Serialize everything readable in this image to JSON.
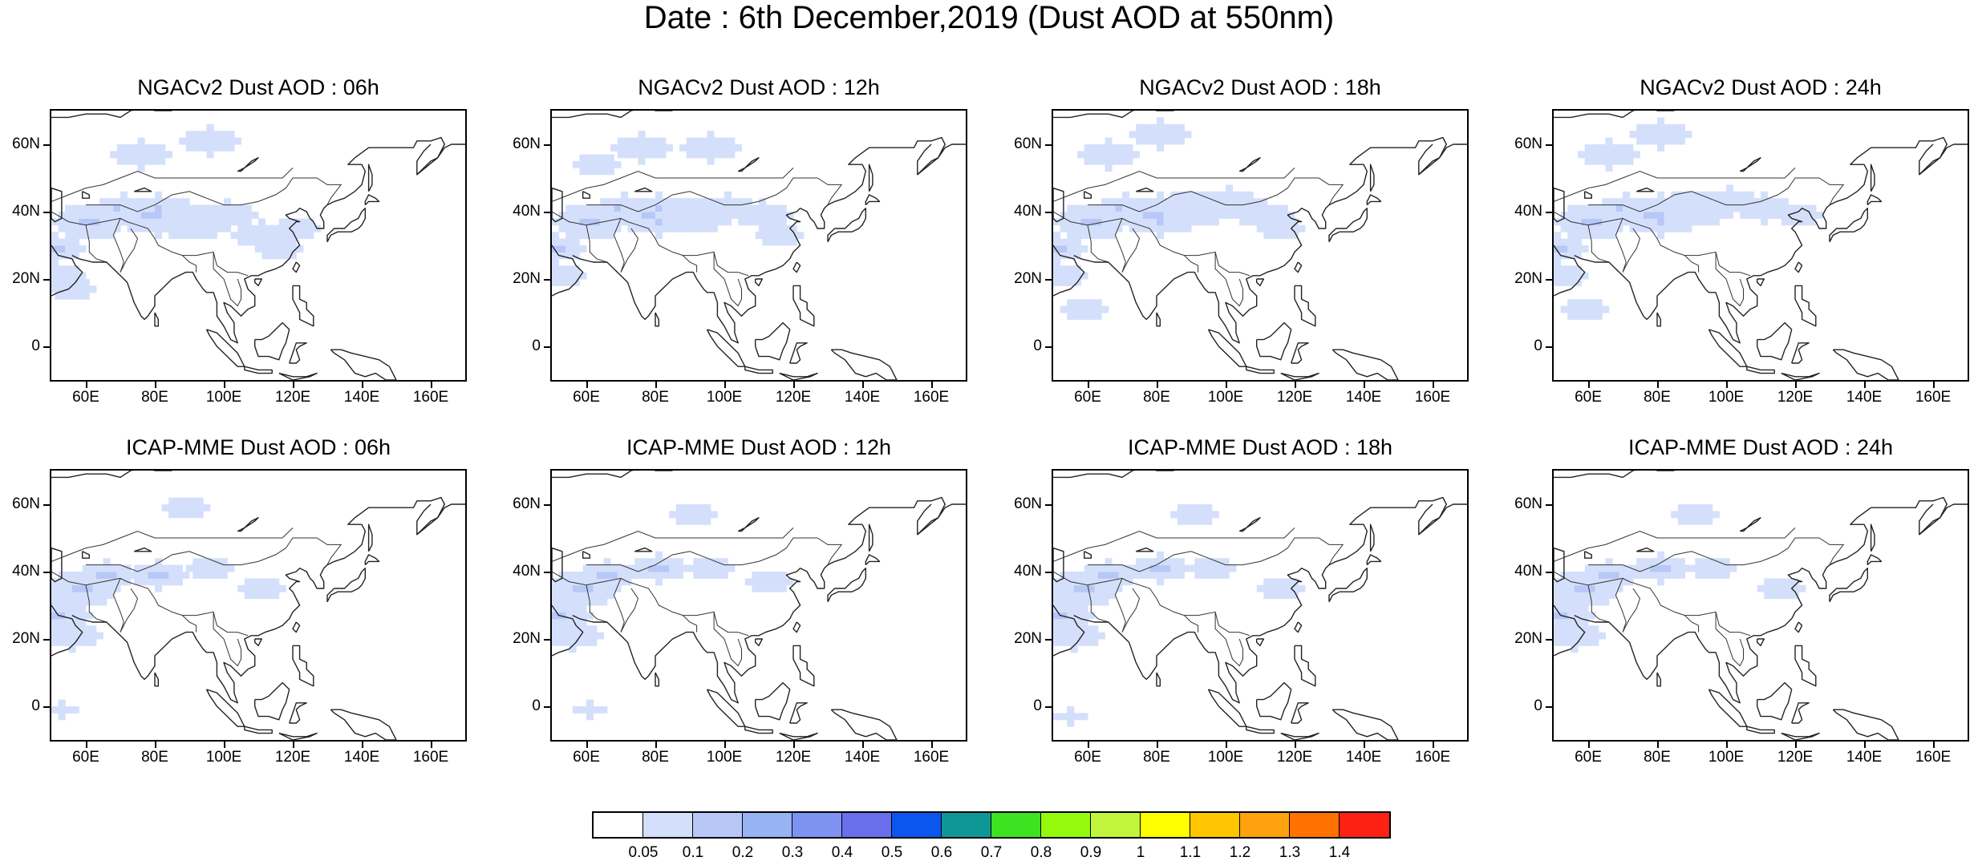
{
  "title": "Date : 6th December,2019 (Dust AOD at 550nm)",
  "panels": [
    {
      "title": "NGACv2 Dust AOD : 06h",
      "model": "NGACv2",
      "lead": "06h",
      "dust": [
        [
          50,
          30,
          4
        ],
        [
          60,
          38,
          5
        ],
        [
          70,
          42,
          4
        ],
        [
          80,
          40,
          6
        ],
        [
          90,
          38,
          5
        ],
        [
          100,
          40,
          4
        ],
        [
          110,
          34,
          4
        ],
        [
          115,
          30,
          3
        ],
        [
          95,
          62,
          4
        ],
        [
          75,
          58,
          4
        ],
        [
          52,
          22,
          3
        ],
        [
          55,
          18,
          3
        ],
        [
          120,
          36,
          3
        ]
      ]
    },
    {
      "title": "NGACv2 Dust AOD : 12h",
      "model": "NGACv2",
      "lead": "12h",
      "dust": [
        [
          50,
          30,
          4
        ],
        [
          60,
          38,
          5
        ],
        [
          70,
          42,
          4
        ],
        [
          80,
          40,
          6
        ],
        [
          90,
          40,
          5
        ],
        [
          100,
          42,
          4
        ],
        [
          110,
          40,
          4
        ],
        [
          115,
          34,
          3
        ],
        [
          95,
          60,
          4
        ],
        [
          75,
          60,
          4
        ],
        [
          52,
          22,
          3
        ],
        [
          62,
          55,
          3
        ]
      ]
    },
    {
      "title": "NGACv2 Dust AOD : 18h",
      "model": "NGACv2",
      "lead": "18h",
      "dust": [
        [
          50,
          30,
          4
        ],
        [
          60,
          38,
          5
        ],
        [
          70,
          42,
          4
        ],
        [
          80,
          40,
          6
        ],
        [
          90,
          42,
          5
        ],
        [
          100,
          44,
          4
        ],
        [
          110,
          40,
          4
        ],
        [
          115,
          36,
          3
        ],
        [
          80,
          64,
          4
        ],
        [
          65,
          58,
          4
        ],
        [
          52,
          22,
          3
        ],
        [
          58,
          12,
          3
        ]
      ]
    },
    {
      "title": "NGACv2 Dust AOD : 24h",
      "model": "NGACv2",
      "lead": "24h",
      "dust": [
        [
          50,
          30,
          4
        ],
        [
          60,
          38,
          5
        ],
        [
          70,
          42,
          4
        ],
        [
          80,
          40,
          6
        ],
        [
          90,
          42,
          5
        ],
        [
          100,
          44,
          4
        ],
        [
          110,
          42,
          4
        ],
        [
          120,
          40,
          3
        ],
        [
          80,
          64,
          4
        ],
        [
          65,
          58,
          4
        ],
        [
          52,
          22,
          3
        ],
        [
          58,
          12,
          3
        ]
      ]
    },
    {
      "title": "ICAP-MME Dust AOD : 06h",
      "model": "ICAP-MME",
      "lead": "06h",
      "dust": [
        [
          50,
          28,
          5
        ],
        [
          58,
          36,
          5
        ],
        [
          65,
          40,
          4
        ],
        [
          80,
          40,
          4
        ],
        [
          95,
          42,
          3
        ],
        [
          110,
          36,
          3
        ],
        [
          88,
          60,
          3
        ],
        [
          52,
          0,
          2
        ],
        [
          55,
          22,
          4
        ]
      ]
    },
    {
      "title": "ICAP-MME Dust AOD : 12h",
      "model": "ICAP-MME",
      "lead": "12h",
      "dust": [
        [
          50,
          28,
          5
        ],
        [
          58,
          36,
          5
        ],
        [
          65,
          40,
          4
        ],
        [
          80,
          42,
          4
        ],
        [
          95,
          42,
          3
        ],
        [
          112,
          38,
          3
        ],
        [
          90,
          58,
          3
        ],
        [
          60,
          0,
          2
        ],
        [
          55,
          22,
          4
        ]
      ]
    },
    {
      "title": "ICAP-MME Dust AOD : 18h",
      "model": "ICAP-MME",
      "lead": "18h",
      "dust": [
        [
          50,
          28,
          5
        ],
        [
          58,
          36,
          5
        ],
        [
          65,
          40,
          4
        ],
        [
          80,
          42,
          4
        ],
        [
          95,
          42,
          3
        ],
        [
          115,
          36,
          3
        ],
        [
          90,
          58,
          3
        ],
        [
          54,
          -2,
          2
        ],
        [
          55,
          22,
          4
        ]
      ]
    },
    {
      "title": "ICAP-MME Dust AOD : 24h",
      "model": "ICAP-MME",
      "lead": "24h",
      "dust": [
        [
          50,
          28,
          5
        ],
        [
          58,
          36,
          5
        ],
        [
          65,
          40,
          4
        ],
        [
          80,
          42,
          4
        ],
        [
          95,
          42,
          3
        ],
        [
          115,
          36,
          3
        ],
        [
          90,
          58,
          3
        ],
        [
          55,
          22,
          4
        ]
      ]
    }
  ],
  "axes": {
    "y_ticks": [
      "60N",
      "40N",
      "20N",
      "0"
    ],
    "y_values": [
      60,
      40,
      20,
      0
    ],
    "x_ticks": [
      "60E",
      "80E",
      "100E",
      "120E",
      "140E",
      "160E"
    ],
    "x_values": [
      60,
      80,
      100,
      120,
      140,
      160
    ],
    "lon_range": [
      50,
      170
    ],
    "lat_range": [
      -10,
      70
    ]
  },
  "colorbar": {
    "colors": [
      "#ffffff",
      "#d4e0fb",
      "#b7c8f7",
      "#97b3f3",
      "#7e93f1",
      "#6a6fee",
      "#0b56ee",
      "#0e9797",
      "#3fe221",
      "#95f90d",
      "#c1f63c",
      "#fefe00",
      "#fec500",
      "#fea20d",
      "#fd7200",
      "#fc2113"
    ],
    "labels": [
      "0.05",
      "0.1",
      "0.2",
      "0.3",
      "0.4",
      "0.5",
      "0.6",
      "0.7",
      "0.8",
      "0.9",
      "1",
      "1.1",
      "1.2",
      "1.3",
      "1.4"
    ]
  }
}
